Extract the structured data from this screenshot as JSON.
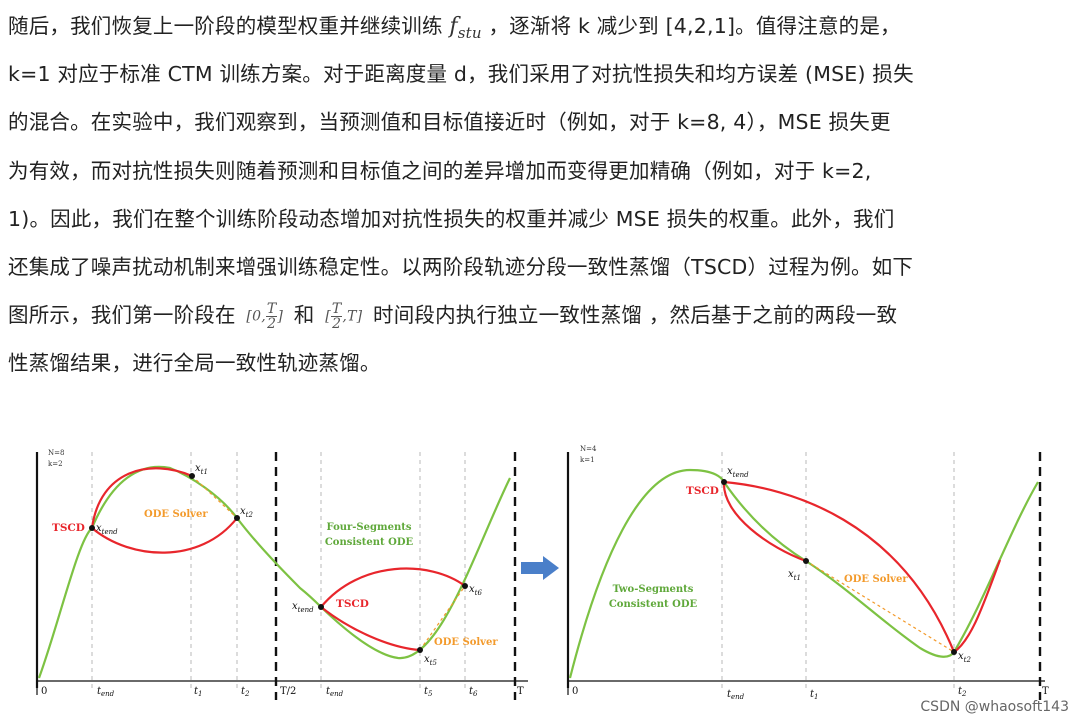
{
  "text": {
    "line1_a": "随后，我们恢复上一阶段的模型权重并继续训练 ",
    "math_f": "f",
    "math_f_sub": "stu",
    "line1_b": " ，逐渐将 k 减少到 [4,2,1]。值得注意的是，",
    "line2": "k=1 对应于标准 CTM 训练方案。对于距离度量 d，我们采用了对抗性损失和均方误差 (MSE) 损失",
    "line3": "的混合。在实验中，我们观察到，当预测值和目标值接近时（例如，对于 k=8, 4），MSE 损失更",
    "line4": "为有效，而对抗性损失则随着预测和目标值之间的差异增加而变得更加精确（例如，对于 k=2,",
    "line5": "1)。因此，我们在整个训练阶段动态增加对抗性损失的权重并减少 MSE 损失的权重。此外，我们",
    "line6": "还集成了噪声扰动机制来增强训练稳定性。以两阶段轨迹分段一致性蒸馏（TSCD）过程为例。如下",
    "line7_a": "图所示，我们第一阶段在 ",
    "interval1_open": "[0,",
    "interval1_num": "T",
    "interval1_den": "2",
    "interval1_close": "]",
    "line7_mid": " 和 ",
    "interval2_open": "[",
    "interval2_num": "T",
    "interval2_den": "2",
    "interval2_close": ",T]",
    "line7_b": " 时间段内执行独立一致性蒸馏 ，然后基于之前的两段一致",
    "line8": "性蒸馏结果，进行全局一致性轨迹蒸馏。"
  },
  "figure": {
    "left_panel": {
      "params_n": "N=8",
      "params_k": "k=2",
      "axis_ticks": [
        "0",
        "t",
        "t",
        "t",
        "T/2",
        "t",
        "t",
        "t",
        "T"
      ],
      "axis_tick_subs": [
        "",
        "end",
        "1",
        "2",
        "",
        "end",
        "5",
        "6",
        ""
      ],
      "tscd_label_1": "TSCD",
      "tscd_label_2": "TSCD",
      "ode_solver_1": "ODE Solver",
      "ode_solver_2": "ODE Solver",
      "consistent_ode_line1": "Four-Segments",
      "consistent_ode_line2": "Consistent ODE",
      "point_x": "x",
      "point_subs": [
        "t1",
        "t2",
        "tend",
        "tend",
        "t5",
        "t6"
      ]
    },
    "right_panel": {
      "params_n": "N=4",
      "params_k": "k=1",
      "axis_ticks": [
        "0",
        "t",
        "t",
        "t",
        "T"
      ],
      "axis_tick_subs": [
        "",
        "end",
        "1",
        "2",
        ""
      ],
      "tscd_label": "TSCD",
      "ode_solver": "ODE Solver",
      "consistent_ode_line1": "Two-Segments",
      "consistent_ode_line2": "Consistent ODE",
      "point_subs": [
        "tend",
        "t1",
        "t2"
      ]
    },
    "colors": {
      "green_curve": "#7dc243",
      "red_curve": "#e8262c",
      "orange_label": "#f39a2b",
      "green_label": "#5fa83a",
      "arrow": "#4a7fc9",
      "dashed_divider": "#333333"
    }
  },
  "watermark": "CSDN @whaosoft143"
}
